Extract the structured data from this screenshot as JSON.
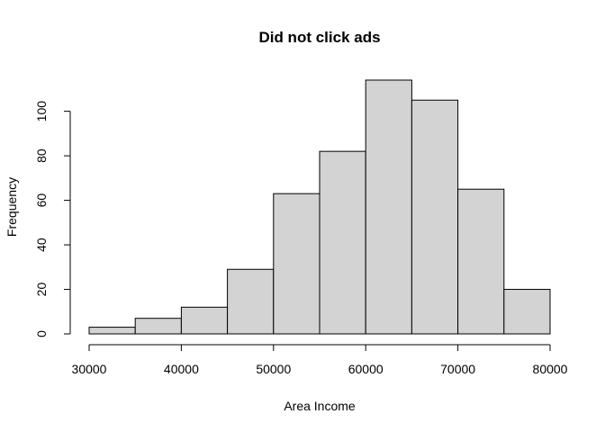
{
  "chart_data": {
    "type": "bar",
    "title": "Did not click ads",
    "xlabel": "Area Income",
    "ylabel": "Frequency",
    "bins": [
      [
        30000,
        35000
      ],
      [
        35000,
        40000
      ],
      [
        40000,
        45000
      ],
      [
        45000,
        50000
      ],
      [
        50000,
        55000
      ],
      [
        55000,
        60000
      ],
      [
        60000,
        65000
      ],
      [
        65000,
        70000
      ],
      [
        70000,
        75000
      ],
      [
        75000,
        80000
      ]
    ],
    "values": [
      3,
      7,
      12,
      29,
      63,
      82,
      114,
      105,
      65,
      20
    ],
    "xlim": [
      30000,
      80000
    ],
    "ylim": [
      0,
      114
    ],
    "x_ticks": [
      30000,
      40000,
      50000,
      60000,
      70000,
      80000
    ],
    "x_tick_labels": [
      "30000",
      "40000",
      "50000",
      "60000",
      "70000",
      "80000"
    ],
    "y_ticks": [
      0,
      20,
      40,
      60,
      80,
      100
    ],
    "y_tick_labels": [
      "0",
      "20",
      "40",
      "60",
      "80",
      "100"
    ],
    "bar_color": "#d3d3d3",
    "grid": false
  }
}
